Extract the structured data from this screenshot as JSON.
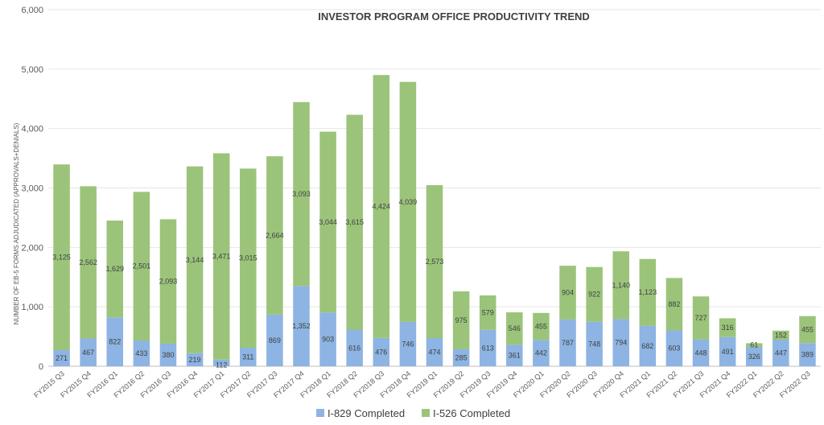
{
  "chart_data": {
    "type": "bar",
    "stacked": true,
    "title": "INVESTOR PROGRAM OFFICE PRODUCTIVITY TREND",
    "xlabel": "",
    "ylabel": "NUMBER OF EB-5 FORMS ADJUDICATED (APPROVALS+DENIALS)",
    "ylim": [
      0,
      6000
    ],
    "yticks": [
      0,
      1000,
      2000,
      3000,
      4000,
      5000,
      6000
    ],
    "ytick_labels": [
      "0",
      "1,000",
      "2,000",
      "3,000",
      "4,000",
      "5,000",
      "6,000"
    ],
    "grid": true,
    "legend_position": "bottom",
    "categories": [
      "FY2015 Q3",
      "FY2015 Q4",
      "FY2016 Q1",
      "FY2016 Q2",
      "FY2016 Q3",
      "FY2016 Q4",
      "FY2017 Q1",
      "FY2017 Q2",
      "FY2017 Q3",
      "FY2017 Q4",
      "FY2018 Q1",
      "FY2018 Q2",
      "FY2018 Q3",
      "FY2018 Q4",
      "FY2019 Q1",
      "FY2019 Q2",
      "FY2019 Q3",
      "FY2019 Q4",
      "FY2020 Q1",
      "FY2020 Q2",
      "FY2020 Q3",
      "FY2020 Q4",
      "FY2021 Q1",
      "FY2021 Q2",
      "FY2021 Q3",
      "FY2021 Q4",
      "FY2022 Q1",
      "FY2022 Q2",
      "FY2022 Q3"
    ],
    "series": [
      {
        "name": "I-829 Completed",
        "color": "#8DB4E2",
        "values": [
          271,
          467,
          822,
          433,
          380,
          219,
          112,
          311,
          869,
          1352,
          903,
          616,
          476,
          746,
          474,
          285,
          613,
          361,
          442,
          787,
          748,
          794,
          682,
          603,
          448,
          491,
          326,
          447,
          389
        ],
        "labels": [
          "271",
          "467",
          "822",
          "433",
          "380",
          "219",
          "112",
          "311",
          "869",
          "1,352",
          "903",
          "616",
          "476",
          "746",
          "474",
          "285",
          "613",
          "361",
          "442",
          "787",
          "748",
          "794",
          "682",
          "603",
          "448",
          "491",
          "326",
          "447",
          "389"
        ]
      },
      {
        "name": "I-526 Completed",
        "color": "#9BC47A",
        "values": [
          3125,
          2562,
          1629,
          2501,
          2093,
          3144,
          3471,
          3015,
          2664,
          3093,
          3044,
          3615,
          4424,
          4039,
          2573,
          975,
          579,
          546,
          455,
          904,
          922,
          1140,
          1123,
          882,
          727,
          316,
          61,
          152,
          455
        ],
        "labels": [
          "3,125",
          "2,562",
          "1,629",
          "2,501",
          "2,093",
          "3,144",
          "3,471",
          "3,015",
          "2,664",
          "3,093",
          "3,044",
          "3,615",
          "4,424",
          "4,039",
          "2,573",
          "975",
          "579",
          "546",
          "455",
          "904",
          "922",
          "1,140",
          "1,123",
          "882",
          "727",
          "316",
          "61",
          "152",
          "455"
        ]
      }
    ]
  }
}
